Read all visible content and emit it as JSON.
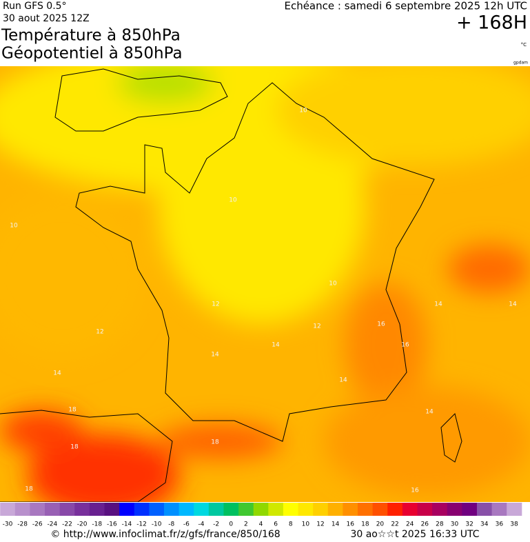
{
  "header": {
    "run": "Run GFS 0.5°",
    "run_date": "30 aout 2025 12Z",
    "valid": "Echéance : samedi 6 septembre 2025 12h UTC",
    "lead": "+ 168H",
    "title_1": "Température à 850hPa",
    "title_2": "Géopotentiel à 850hPa",
    "unit": "°C",
    "credit": "gpdam"
  },
  "map": {
    "contour_labels": [
      "10",
      "10",
      "10",
      "10",
      "12",
      "12",
      "12",
      "14",
      "14",
      "14",
      "14",
      "14",
      "14",
      "14",
      "16",
      "16",
      "16",
      "18",
      "18",
      "18",
      "18"
    ]
  },
  "legend": {
    "values": [
      -30,
      -28,
      -26,
      -24,
      -22,
      -20,
      -18,
      -16,
      -14,
      -12,
      -10,
      -8,
      -6,
      -4,
      -2,
      0,
      2,
      4,
      6,
      8,
      10,
      12,
      14,
      16,
      18,
      20,
      22,
      24,
      26,
      28,
      30,
      32,
      34,
      36,
      38
    ],
    "colors": [
      "#c8a8d8",
      "#b890cc",
      "#a878c0",
      "#9860b4",
      "#8848a8",
      "#78309c",
      "#682090",
      "#581080",
      "#0000ff",
      "#0030ff",
      "#0060ff",
      "#0090ff",
      "#00b8ff",
      "#00d8e0",
      "#00c8a0",
      "#00c060",
      "#40c830",
      "#90d800",
      "#d0e800",
      "#ffff00",
      "#ffe800",
      "#ffd000",
      "#ffb000",
      "#ff9000",
      "#ff7000",
      "#ff5000",
      "#ff2000",
      "#e80030",
      "#c80048",
      "#a80060",
      "#880070",
      "#700080",
      "#8850a8",
      "#a878c0",
      "#c8a8d8"
    ]
  },
  "footer": {
    "url": "© http://www.infoclimat.fr/z/gfs/france/850/168",
    "stamp": "30 ao☆☆t 2025 16:33 UTC"
  }
}
